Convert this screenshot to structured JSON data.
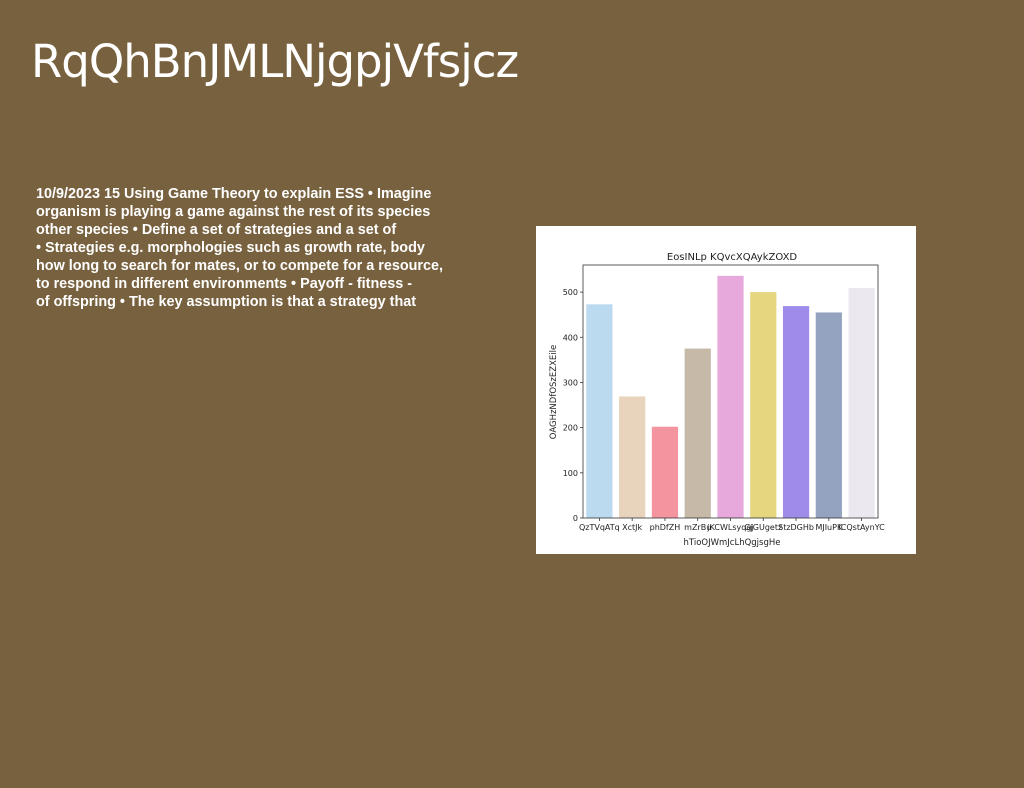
{
  "slide": {
    "title": "RqQhBnJMLNjgpjVfsjcz",
    "body_lines": [
      "10/9/2023 15 Using Game Theory to explain ESS • Imagine",
      "organism is playing a game against the rest of its species",
      "other species • Define a set of strategies and a set of",
      "• Strategies e.g. morphologies such as growth rate, body",
      "how long to search for mates, or to compete for a resource,",
      "to respond in different environments • Payoff - fitness -",
      "of offspring • The key assumption is that a strategy that"
    ]
  },
  "chart_data": {
    "type": "bar",
    "title": "EosINLp KQvcXQAykZOXD",
    "xlabel": "hTioOJWmJcLhQgjsgHe",
    "ylabel": "OAGHzNDfOSzEZXEile",
    "categories": [
      "QzTVqATq",
      "XctJk",
      "phDfZH",
      "mZrBu",
      "jKCWLsyqgj",
      "GjGUgetz",
      "StzDGHb",
      "MJIuPK",
      "ICQstAynYC"
    ],
    "values": [
      473,
      269,
      202,
      375,
      536,
      500,
      469,
      455,
      509
    ],
    "colors": [
      "#bcdaef",
      "#e8d4bc",
      "#f3949f",
      "#c7b9a7",
      "#e7a8dc",
      "#e6d67f",
      "#9e8bea",
      "#94a3bf",
      "#ece8f0"
    ],
    "ylim": [
      0,
      560
    ],
    "yticks": [
      0,
      100,
      200,
      300,
      400,
      500
    ],
    "grid": false,
    "legend": "none"
  }
}
